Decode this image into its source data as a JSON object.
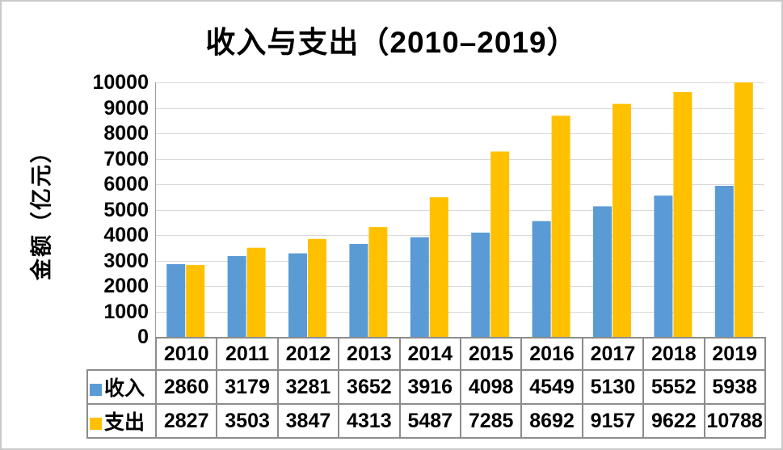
{
  "page": {
    "background": "#ffffff",
    "border_color": "#c9c9c9"
  },
  "chart_data": {
    "type": "bar",
    "title": "收入与支出（2010–2019）",
    "xlabel": "",
    "ylabel": "金额（亿元）",
    "categories": [
      "2010",
      "2011",
      "2012",
      "2013",
      "2014",
      "2015",
      "2016",
      "2017",
      "2018",
      "2019"
    ],
    "series": [
      {
        "name": "收入",
        "color": "#5B9BD5",
        "values": [
          2860,
          3179,
          3281,
          3652,
          3916,
          4098,
          4549,
          5130,
          5552,
          5938
        ]
      },
      {
        "name": "支出",
        "color": "#FFC000",
        "values": [
          2827,
          3503,
          3847,
          4313,
          5487,
          7285,
          8692,
          9157,
          9622,
          10788
        ]
      }
    ],
    "ylim": [
      0,
      10000
    ],
    "yticks": [
      0,
      1000,
      2000,
      3000,
      4000,
      5000,
      6000,
      7000,
      8000,
      9000,
      10000
    ],
    "grid": true,
    "legend_position": "data-table-left",
    "colors": {
      "gridline": "#D9D9D9",
      "axis": "#9b9b9b",
      "table_border": "#8c8c8c",
      "text": "#000000"
    }
  }
}
